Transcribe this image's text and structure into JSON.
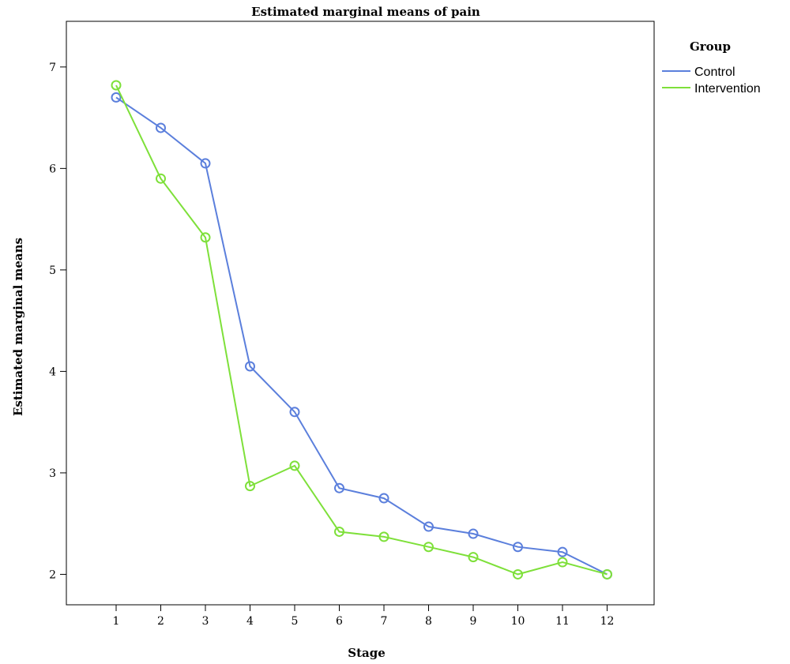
{
  "chart_data": {
    "type": "line",
    "title": "Estimated marginal means of pain",
    "xlabel": "Stage",
    "ylabel": "Estimated marginal means",
    "categories": [
      "1",
      "2",
      "3",
      "4",
      "5",
      "6",
      "7",
      "8",
      "9",
      "10",
      "11",
      "12"
    ],
    "ylim": [
      1.7,
      7.45
    ],
    "yticks": [
      2,
      3,
      4,
      5,
      6,
      7
    ],
    "grid": false,
    "legend": {
      "title": "Group",
      "placement": "right"
    },
    "series": [
      {
        "name": "Control",
        "color": "#5b7fdc",
        "values": [
          6.7,
          6.4,
          6.05,
          4.05,
          3.6,
          2.85,
          2.75,
          2.47,
          2.4,
          2.27,
          2.22,
          2.0
        ]
      },
      {
        "name": "Intervention",
        "color": "#7ee03a",
        "values": [
          6.82,
          5.9,
          5.32,
          2.87,
          3.07,
          2.42,
          2.37,
          2.27,
          2.17,
          2.0,
          2.12,
          2.0
        ]
      }
    ]
  }
}
